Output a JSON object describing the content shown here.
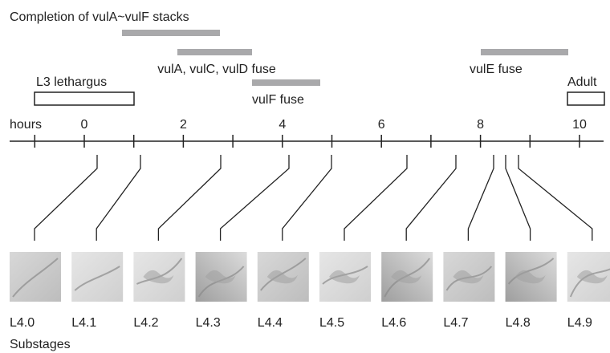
{
  "title": "Completion of vulA~vulF stacks",
  "events": [
    {
      "label": "vulA, vulC, vulD fuse"
    },
    {
      "label": "vulF fuse"
    },
    {
      "label": "vulE fuse"
    }
  ],
  "stages": [
    {
      "label": "L3 lethargus"
    },
    {
      "label": "Adult"
    }
  ],
  "axis": {
    "label": "hours",
    "ticks": [
      "0",
      "2",
      "4",
      "6",
      "8",
      "10"
    ]
  },
  "substages": {
    "label": "Substages",
    "items": [
      "L4.0",
      "L4.1",
      "L4.2",
      "L4.3",
      "L4.4",
      "L4.5",
      "L4.6",
      "L4.7",
      "L4.8",
      "L4.9"
    ]
  }
}
